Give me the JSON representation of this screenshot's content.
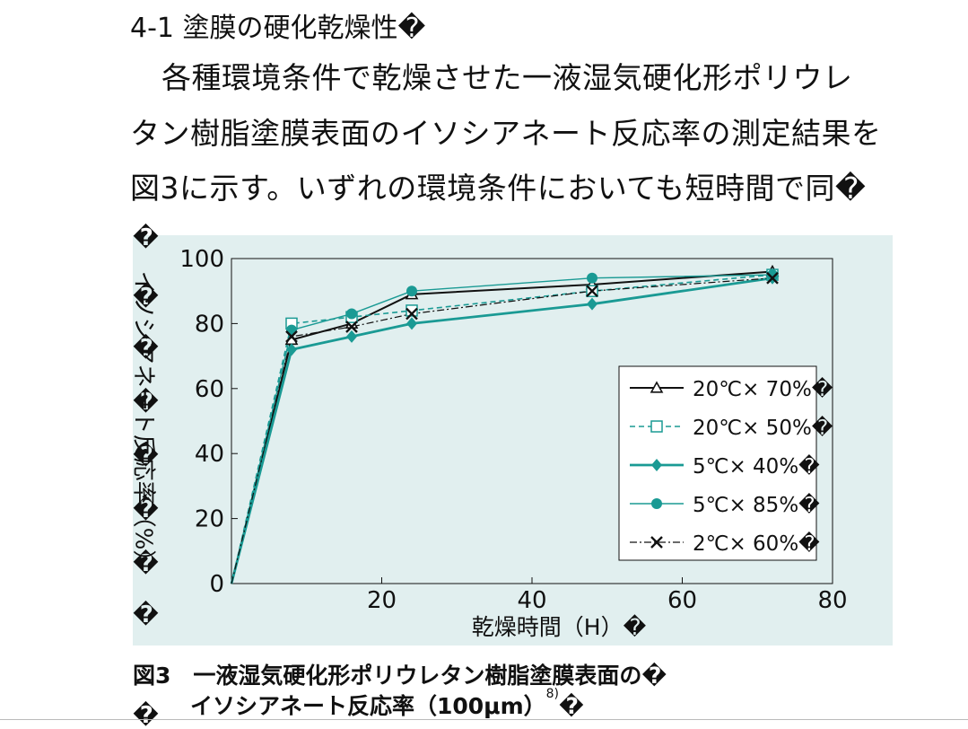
{
  "heading": "4-1  塗膜の硬化乾燥性�",
  "paragraph": {
    "line1": "各種環境条件で乾燥させた一液湿気硬化形ポリウレ",
    "line2": "タン樹脂塗膜表面のイソシアネート反応率の測定結果を",
    "line3": "図3に示す。いずれの環境条件においても短時間で同�"
  },
  "ylabel_text": "イソシアネート反応率（%）",
  "left_glyphs": [
    "�",
    "�",
    "�",
    "�",
    "�",
    "�",
    "�",
    "�",
    "�"
  ],
  "caption": {
    "line1": "図3　一液湿気硬化形ポリウレタン樹脂塗膜表面の�",
    "line2": "イソシアネート反応率（100μm）",
    "line2_sup": "8)",
    "line2_tail": "�"
  },
  "chart_data": {
    "type": "line",
    "xlabel": "乾燥時間（H）�",
    "ylabel": "イソシアネート反応率（%）",
    "xlim": [
      0,
      80
    ],
    "ylim": [
      0,
      100
    ],
    "xticks": [
      20,
      40,
      60,
      80
    ],
    "yticks": [
      0,
      20,
      40,
      60,
      80,
      100
    ],
    "grid": false,
    "legend_position": "lower-right",
    "series": [
      {
        "name": "20℃× 70%�",
        "x": [
          0,
          8,
          16,
          24,
          48,
          72
        ],
        "y": [
          0,
          75,
          80,
          89,
          92,
          96
        ],
        "color": "#111111",
        "marker": "open-triangle",
        "dash": "solid",
        "width": 2
      },
      {
        "name": "20℃× 50%�",
        "x": [
          0,
          8,
          16,
          24,
          48,
          72
        ],
        "y": [
          0,
          80,
          82,
          84,
          90,
          95
        ],
        "color": "#1a9a94",
        "marker": "open-square",
        "dash": "dashed",
        "width": 1.6
      },
      {
        "name": "5℃× 40%�",
        "x": [
          0,
          8,
          16,
          24,
          48,
          72
        ],
        "y": [
          0,
          72,
          76,
          80,
          86,
          94
        ],
        "color": "#1a9a94",
        "marker": "filled-diamond",
        "dash": "solid",
        "width": 2.8
      },
      {
        "name": "5℃× 85%�",
        "x": [
          0,
          8,
          16,
          24,
          48,
          72
        ],
        "y": [
          0,
          78,
          83,
          90,
          94,
          95
        ],
        "color": "#1a9a94",
        "marker": "filled-circle",
        "dash": "solid",
        "width": 1.4
      },
      {
        "name": "2℃× 60%�",
        "x": [
          0,
          8,
          16,
          24,
          48,
          72
        ],
        "y": [
          0,
          76,
          79,
          83,
          90,
          94
        ],
        "color": "#111111",
        "marker": "cross",
        "dash": "dashdot",
        "width": 1.2
      }
    ]
  }
}
